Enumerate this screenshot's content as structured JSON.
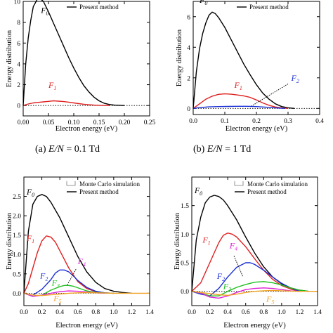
{
  "chart_data": [
    {
      "type": "line",
      "panel": "a",
      "xlabel": "Electron energy (eV)",
      "ylabel": "Energy distribution",
      "xlim": [
        0,
        0.25
      ],
      "ylim": [
        -1,
        10
      ],
      "xticks": [
        0.0,
        0.05,
        0.1,
        0.15,
        0.2,
        0.25
      ],
      "xtick_labels": [
        "0.00",
        "0.05",
        "0.10",
        "0.15",
        "0.20",
        "0.25"
      ],
      "yticks": [
        0,
        2,
        4,
        6,
        8,
        10
      ],
      "ytick_labels": [
        "0",
        "2",
        "4",
        "6",
        "8",
        "10"
      ],
      "legend": {
        "position": "top-right",
        "entries": [
          "Present method"
        ]
      },
      "caption": "(a) E/N = 0.1 Td",
      "series": [
        {
          "label": "F0",
          "color": "#000000",
          "x": [
            0,
            0.005,
            0.01,
            0.015,
            0.02,
            0.03,
            0.04,
            0.05,
            0.06,
            0.07,
            0.08,
            0.09,
            0.1,
            0.11,
            0.12,
            0.13,
            0.14,
            0.15,
            0.16,
            0.17,
            0.18,
            0.2
          ],
          "y": [
            0,
            4.0,
            6.5,
            8.2,
            9.5,
            10.4,
            10.0,
            9.0,
            7.9,
            6.8,
            5.7,
            4.6,
            3.6,
            2.7,
            1.9,
            1.3,
            0.8,
            0.45,
            0.22,
            0.1,
            0.04,
            0
          ]
        },
        {
          "label": "F1",
          "color": "#e02020",
          "x": [
            0,
            0.01,
            0.02,
            0.03,
            0.04,
            0.05,
            0.06,
            0.07,
            0.08,
            0.09,
            0.1,
            0.11,
            0.12,
            0.13,
            0.14,
            0.15,
            0.17
          ],
          "y": [
            0,
            0.15,
            0.25,
            0.3,
            0.35,
            0.4,
            0.45,
            0.42,
            0.38,
            0.32,
            0.25,
            0.18,
            0.12,
            0.07,
            0.04,
            0.02,
            0
          ]
        }
      ]
    },
    {
      "type": "line",
      "panel": "b",
      "xlabel": "Electron energy (eV)",
      "ylabel": "Energy distribution",
      "xlim": [
        0,
        0.4
      ],
      "ylim": [
        -0.4,
        7
      ],
      "xticks": [
        0.0,
        0.1,
        0.2,
        0.3,
        0.4
      ],
      "xtick_labels": [
        "0.0",
        "0.1",
        "0.2",
        "0.3",
        "0.4"
      ],
      "yticks": [
        0,
        2,
        4,
        6
      ],
      "ytick_labels": [
        "0",
        "2",
        "4",
        "6"
      ],
      "legend": {
        "position": "top-right",
        "entries": [
          "Present method"
        ]
      },
      "caption": "(b) E/N = 1 Td",
      "series": [
        {
          "label": "F0",
          "color": "#000000",
          "x": [
            0,
            0.01,
            0.02,
            0.03,
            0.04,
            0.05,
            0.06,
            0.07,
            0.08,
            0.1,
            0.12,
            0.14,
            0.16,
            0.18,
            0.2,
            0.22,
            0.24,
            0.26,
            0.28,
            0.3,
            0.32
          ],
          "y": [
            0,
            2.4,
            3.9,
            4.9,
            5.6,
            6.1,
            6.3,
            6.2,
            5.95,
            5.3,
            4.5,
            3.7,
            2.9,
            2.2,
            1.55,
            1.0,
            0.6,
            0.3,
            0.12,
            0.04,
            0
          ]
        },
        {
          "label": "F1",
          "color": "#e02020",
          "x": [
            0,
            0.02,
            0.04,
            0.06,
            0.08,
            0.1,
            0.12,
            0.14,
            0.16,
            0.18,
            0.2,
            0.22,
            0.24,
            0.26,
            0.28,
            0.3
          ],
          "y": [
            0,
            0.3,
            0.6,
            0.8,
            0.92,
            0.95,
            0.93,
            0.88,
            0.82,
            0.72,
            0.55,
            0.36,
            0.2,
            0.09,
            0.03,
            0
          ]
        },
        {
          "label": "F2",
          "color": "#1a2fd6",
          "x": [
            0,
            0.02,
            0.05,
            0.08,
            0.11,
            0.14,
            0.17,
            0.2,
            0.23,
            0.26,
            0.29
          ],
          "y": [
            0,
            0.05,
            0.1,
            0.12,
            0.13,
            0.14,
            0.14,
            0.12,
            0.08,
            0.03,
            0
          ]
        }
      ]
    },
    {
      "type": "line",
      "panel": "c",
      "xlabel": "Electron energy (eV)",
      "ylabel": "Energy distribution",
      "xlim": [
        0,
        1.4
      ],
      "ylim": [
        -0.32,
        3
      ],
      "xticks": [
        0.0,
        0.2,
        0.4,
        0.6,
        0.8,
        1.0,
        1.2,
        1.4
      ],
      "xtick_labels": [
        "0.0",
        "0.2",
        "0.4",
        "0.6",
        "0.8",
        "1.0",
        "1.2",
        "1.4"
      ],
      "yticks": [
        0.0,
        0.5,
        1.0,
        1.5,
        2.0,
        2.5
      ],
      "ytick_labels": [
        "0.0",
        "0.5",
        "1.0",
        "1.5",
        "2.0",
        "2.5"
      ],
      "legend": {
        "position": "top-right",
        "entries": [
          "Monte Carlo simulation",
          "Present method"
        ]
      },
      "series": [
        {
          "label": "F0",
          "color": "#000000",
          "x": [
            0,
            0.05,
            0.1,
            0.15,
            0.2,
            0.25,
            0.3,
            0.4,
            0.5,
            0.6,
            0.7,
            0.8,
            0.9,
            1.0,
            1.1,
            1.2
          ],
          "y": [
            0,
            1.6,
            2.3,
            2.5,
            2.55,
            2.5,
            2.35,
            1.95,
            1.45,
            0.95,
            0.55,
            0.28,
            0.12,
            0.05,
            0.02,
            0
          ]
        },
        {
          "label": "F1",
          "color": "#e02020",
          "x": [
            0,
            0.05,
            0.1,
            0.15,
            0.2,
            0.25,
            0.3,
            0.35,
            0.4,
            0.5,
            0.6,
            0.7,
            0.8,
            0.9,
            1.0
          ],
          "y": [
            0,
            0.25,
            0.65,
            1.05,
            1.35,
            1.48,
            1.45,
            1.32,
            1.1,
            0.65,
            0.3,
            0.12,
            0.04,
            0.01,
            0
          ]
        },
        {
          "label": "F2",
          "color": "#1a2fd6",
          "x": [
            0,
            0.1,
            0.2,
            0.3,
            0.35,
            0.4,
            0.45,
            0.5,
            0.55,
            0.6,
            0.7,
            0.8,
            0.9,
            1.0
          ],
          "y": [
            0,
            -0.05,
            0.1,
            0.35,
            0.52,
            0.6,
            0.6,
            0.55,
            0.45,
            0.33,
            0.15,
            0.05,
            0.01,
            0
          ]
        },
        {
          "label": "F3",
          "color": "#1fbf1f",
          "x": [
            0,
            0.1,
            0.2,
            0.3,
            0.4,
            0.45,
            0.5,
            0.55,
            0.6,
            0.7,
            0.8,
            0.9,
            1.0
          ],
          "y": [
            0,
            -0.08,
            -0.05,
            0.08,
            0.17,
            0.2,
            0.2,
            0.18,
            0.14,
            0.06,
            0.02,
            0.005,
            0
          ]
        },
        {
          "label": "F4",
          "color": "#e020d8",
          "x": [
            0,
            0.1,
            0.2,
            0.3,
            0.4,
            0.5,
            0.6,
            0.7,
            0.8,
            0.9
          ],
          "y": [
            0,
            -0.08,
            -0.05,
            0.0,
            0.04,
            0.06,
            0.05,
            0.03,
            0.01,
            0
          ]
        },
        {
          "label": "F5",
          "color": "#f0a020",
          "x": [
            0,
            0.1,
            0.2,
            0.3,
            0.4,
            0.5,
            0.6,
            0.7,
            0.8,
            0.9,
            1.0,
            1.2,
            1.4
          ],
          "y": [
            0,
            -0.05,
            -0.06,
            -0.04,
            -0.02,
            0.0,
            0.01,
            0.015,
            0.01,
            0.005,
            0,
            0,
            0
          ]
        }
      ]
    },
    {
      "type": "line",
      "panel": "d",
      "xlabel": "Electron energy (eV)",
      "ylabel": "Energy distribution",
      "xlim": [
        0,
        1.4
      ],
      "ylim": [
        -0.25,
        2.0
      ],
      "xticks": [
        0.0,
        0.2,
        0.4,
        0.6,
        0.8,
        1.0,
        1.2,
        1.4
      ],
      "xtick_labels": [
        "0.0",
        "0.2",
        "0.4",
        "0.6",
        "0.8",
        "1.0",
        "1.2",
        "1.4"
      ],
      "yticks": [
        0.0,
        0.5,
        1.0,
        1.5
      ],
      "ytick_labels": [
        "0.0",
        "0.5",
        "1.0",
        "1.5"
      ],
      "legend": {
        "position": "top-right",
        "entries": [
          "Monte Carlo simulation",
          "Present method"
        ]
      },
      "series": [
        {
          "label": "F0",
          "color": "#000000",
          "x": [
            0,
            0.05,
            0.1,
            0.15,
            0.2,
            0.25,
            0.3,
            0.35,
            0.4,
            0.5,
            0.6,
            0.7,
            0.8,
            0.9,
            1.0,
            1.1,
            1.2,
            1.3
          ],
          "y": [
            0,
            0.9,
            1.3,
            1.55,
            1.65,
            1.68,
            1.66,
            1.6,
            1.5,
            1.25,
            0.95,
            0.67,
            0.43,
            0.25,
            0.13,
            0.06,
            0.02,
            0
          ]
        },
        {
          "label": "F1",
          "color": "#e02020",
          "x": [
            0,
            0.1,
            0.2,
            0.3,
            0.35,
            0.4,
            0.45,
            0.5,
            0.6,
            0.7,
            0.8,
            0.9,
            1.0,
            1.1,
            1.2
          ],
          "y": [
            0,
            0.15,
            0.5,
            0.85,
            0.98,
            1.02,
            1.0,
            0.95,
            0.78,
            0.57,
            0.37,
            0.21,
            0.1,
            0.04,
            0
          ]
        },
        {
          "label": "F2",
          "color": "#1a2fd6",
          "x": [
            0,
            0.1,
            0.2,
            0.3,
            0.4,
            0.5,
            0.6,
            0.65,
            0.7,
            0.8,
            0.9,
            1.0,
            1.1,
            1.2
          ],
          "y": [
            0,
            -0.05,
            -0.08,
            0.05,
            0.25,
            0.42,
            0.5,
            0.5,
            0.47,
            0.37,
            0.25,
            0.14,
            0.06,
            0
          ]
        },
        {
          "label": "F3",
          "color": "#1fbf1f",
          "x": [
            0,
            0.1,
            0.2,
            0.3,
            0.4,
            0.5,
            0.6,
            0.7,
            0.8,
            0.9,
            1.0,
            1.1,
            1.2,
            1.3
          ],
          "y": [
            0,
            -0.03,
            -0.08,
            -0.08,
            0.0,
            0.07,
            0.12,
            0.16,
            0.17,
            0.15,
            0.11,
            0.06,
            0.02,
            0
          ]
        },
        {
          "label": "F4",
          "color": "#e020d8",
          "x": [
            0,
            0.1,
            0.2,
            0.3,
            0.4,
            0.5,
            0.6,
            0.7,
            0.8,
            0.9,
            1.0,
            1.1,
            1.2
          ],
          "y": [
            0,
            -0.03,
            -0.1,
            -0.12,
            -0.08,
            -0.02,
            0.03,
            0.05,
            0.06,
            0.05,
            0.03,
            0.01,
            0
          ]
        },
        {
          "label": "F5",
          "color": "#f0a020",
          "x": [
            0,
            0.1,
            0.2,
            0.3,
            0.4,
            0.5,
            0.6,
            0.7,
            0.8,
            0.9,
            1.0,
            1.2,
            1.4
          ],
          "y": [
            0,
            -0.02,
            -0.04,
            -0.06,
            -0.07,
            -0.05,
            -0.02,
            0.0,
            0.01,
            0.015,
            0.01,
            0,
            0
          ]
        }
      ]
    }
  ]
}
